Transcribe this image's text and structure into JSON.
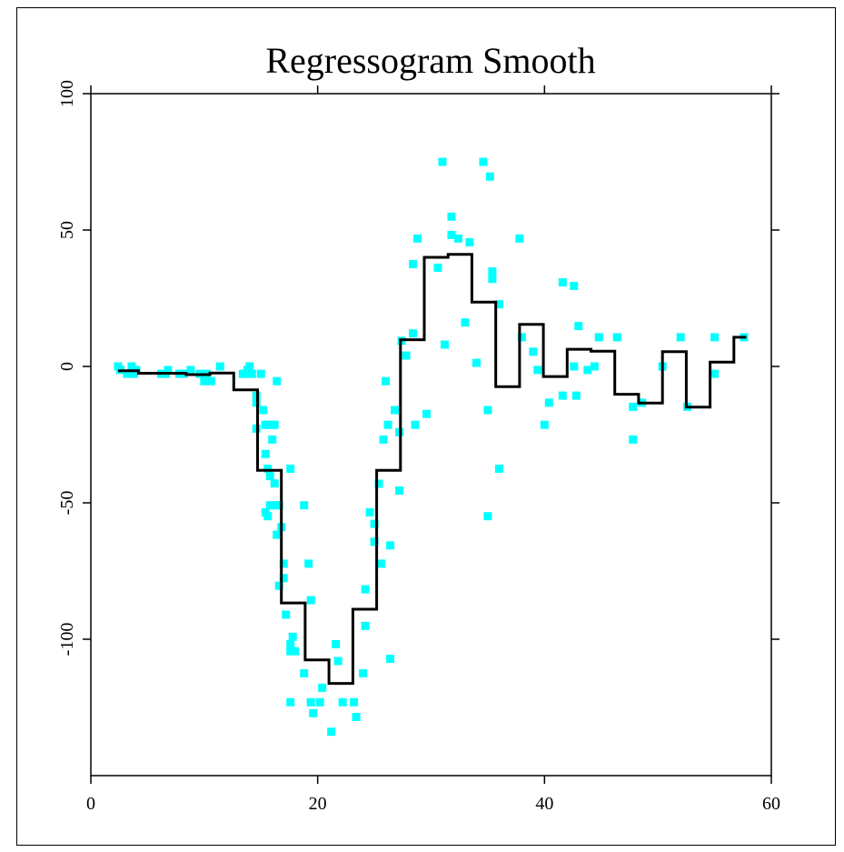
{
  "chart_data": {
    "type": "scatter",
    "title": "Regressogram Smooth",
    "xlabel": "",
    "ylabel": "",
    "xlim": [
      0,
      60
    ],
    "ylim": [
      -150,
      100
    ],
    "x_ticks": [
      0,
      20,
      40,
      60
    ],
    "y_ticks": [
      -100,
      -50,
      0,
      50,
      100
    ],
    "x_tick_labels": [
      "0",
      "20",
      "40",
      "60"
    ],
    "y_tick_labels": [
      "-100",
      "-50",
      "0",
      "50",
      "100"
    ],
    "grid": false,
    "legend": "none",
    "colors": {
      "points": "#00ffff",
      "step_line": "#000000"
    },
    "series": [
      {
        "kind": "points",
        "points": [
          [
            2.4,
            0
          ],
          [
            2.6,
            -1.3
          ],
          [
            3.2,
            -2.7
          ],
          [
            3.6,
            0
          ],
          [
            3.8,
            -2.7
          ],
          [
            4.0,
            -1.3
          ],
          [
            6.2,
            -2.7
          ],
          [
            6.6,
            -2.7
          ],
          [
            6.8,
            -1.3
          ],
          [
            7.8,
            -2.7
          ],
          [
            8.2,
            -2.7
          ],
          [
            8.8,
            -1.3
          ],
          [
            9.6,
            -2.7
          ],
          [
            10.0,
            -5.4
          ],
          [
            10.2,
            -2.7
          ],
          [
            10.6,
            -5.4
          ],
          [
            11.4,
            0
          ],
          [
            13.4,
            -2.7
          ],
          [
            13.6,
            -2.7
          ],
          [
            13.8,
            -1.3
          ],
          [
            14.0,
            0
          ],
          [
            14.2,
            -2.7
          ],
          [
            14.6,
            -10.7
          ],
          [
            14.6,
            -13.3
          ],
          [
            14.6,
            -22.8
          ],
          [
            15.0,
            -2.7
          ],
          [
            15.2,
            -16.0
          ],
          [
            15.4,
            -21.4
          ],
          [
            15.4,
            -32.1
          ],
          [
            15.4,
            -53.5
          ],
          [
            15.6,
            -37.5
          ],
          [
            15.6,
            -21.4
          ],
          [
            15.6,
            -54.9
          ],
          [
            15.8,
            -40.2
          ],
          [
            15.8,
            -50.9
          ],
          [
            16.0,
            -21.4
          ],
          [
            16.0,
            -26.8
          ],
          [
            16.2,
            -21.4
          ],
          [
            16.2,
            -42.9
          ],
          [
            16.2,
            -50.9
          ],
          [
            16.4,
            -61.7
          ],
          [
            16.4,
            -5.4
          ],
          [
            16.6,
            -50.9
          ],
          [
            16.6,
            -80.4
          ],
          [
            16.8,
            -58.9
          ],
          [
            17.0,
            -72.3
          ],
          [
            17.0,
            -77.6
          ],
          [
            17.2,
            -91.0
          ],
          [
            17.6,
            -37.5
          ],
          [
            17.6,
            -101.8
          ],
          [
            17.6,
            -104.4
          ],
          [
            17.6,
            -123.1
          ],
          [
            17.8,
            -99.1
          ],
          [
            18.0,
            -104.4
          ],
          [
            18.8,
            -50.9
          ],
          [
            18.8,
            -112.5
          ],
          [
            19.2,
            -72.3
          ],
          [
            19.4,
            -85.7
          ],
          [
            19.4,
            -123.1
          ],
          [
            19.6,
            -127.1
          ],
          [
            20.2,
            -123.1
          ],
          [
            20.4,
            -117.8
          ],
          [
            21.2,
            -133.9
          ],
          [
            21.6,
            -101.8
          ],
          [
            21.8,
            -108.0
          ],
          [
            22.2,
            -123.1
          ],
          [
            23.2,
            -123.1
          ],
          [
            23.4,
            -128.5
          ],
          [
            24.0,
            -112.5
          ],
          [
            24.2,
            -81.7
          ],
          [
            24.2,
            -95.1
          ],
          [
            24.6,
            -53.5
          ],
          [
            25.0,
            -57.7
          ],
          [
            25.0,
            -64.3
          ],
          [
            25.4,
            -43.0
          ],
          [
            25.6,
            -72.3
          ],
          [
            25.8,
            -26.8
          ],
          [
            26.0,
            -5.4
          ],
          [
            26.2,
            -21.4
          ],
          [
            26.4,
            -107.2
          ],
          [
            26.4,
            -65.6
          ],
          [
            26.8,
            -16.0
          ],
          [
            27.2,
            -24.1
          ],
          [
            27.2,
            -45.5
          ],
          [
            27.4,
            9.4
          ],
          [
            27.8,
            4.0
          ],
          [
            28.4,
            12.1
          ],
          [
            28.4,
            37.5
          ],
          [
            28.6,
            -21.4
          ],
          [
            28.8,
            46.9
          ],
          [
            29.6,
            -17.4
          ],
          [
            30.6,
            36.2
          ],
          [
            31.0,
            75.0
          ],
          [
            31.2,
            8.0
          ],
          [
            31.8,
            48.2
          ],
          [
            31.8,
            54.9
          ],
          [
            32.4,
            46.9
          ],
          [
            33.0,
            16.1
          ],
          [
            33.4,
            45.5
          ],
          [
            34.0,
            1.3
          ],
          [
            34.6,
            75.0
          ],
          [
            35.0,
            -16.0
          ],
          [
            35.0,
            -54.9
          ],
          [
            35.2,
            69.6
          ],
          [
            35.4,
            34.8
          ],
          [
            35.4,
            32.1
          ],
          [
            36.0,
            22.8
          ],
          [
            36.0,
            -37.5
          ],
          [
            37.8,
            46.9
          ],
          [
            38.0,
            10.7
          ],
          [
            39.0,
            5.4
          ],
          [
            39.4,
            -1.3
          ],
          [
            40.0,
            -21.4
          ],
          [
            40.4,
            -13.3
          ],
          [
            41.6,
            30.8
          ],
          [
            41.6,
            -10.7
          ],
          [
            42.6,
            29.5
          ],
          [
            42.6,
            0
          ],
          [
            42.8,
            -10.7
          ],
          [
            43.0,
            14.8
          ],
          [
            43.8,
            -1.3
          ],
          [
            44.4,
            0
          ],
          [
            44.8,
            10.7
          ],
          [
            46.4,
            10.7
          ],
          [
            47.8,
            -26.8
          ],
          [
            47.8,
            -14.8
          ],
          [
            48.6,
            -13.3
          ],
          [
            50.4,
            0
          ],
          [
            52.0,
            10.7
          ],
          [
            52.6,
            -14.8
          ],
          [
            55.0,
            10.7
          ],
          [
            55.0,
            -2.7
          ],
          [
            57.6,
            10.7
          ]
        ]
      },
      {
        "kind": "step",
        "steps": [
          [
            2.4,
            4.2,
            -1.6
          ],
          [
            4.2,
            8.4,
            -2.5
          ],
          [
            8.4,
            10.5,
            -3.0
          ],
          [
            10.5,
            12.6,
            -2.4
          ],
          [
            12.6,
            14.7,
            -8.6
          ],
          [
            14.7,
            16.8,
            -38.1
          ],
          [
            16.8,
            18.9,
            -86.7
          ],
          [
            18.9,
            21.0,
            -107.6
          ],
          [
            21.0,
            23.1,
            -116.2
          ],
          [
            23.1,
            25.2,
            -89.0
          ],
          [
            25.2,
            27.3,
            -38.1
          ],
          [
            27.3,
            29.4,
            9.8
          ],
          [
            29.4,
            31.5,
            40.0
          ],
          [
            31.5,
            33.6,
            41.1
          ],
          [
            33.6,
            35.7,
            23.6
          ],
          [
            35.7,
            37.8,
            -7.4
          ],
          [
            37.8,
            39.9,
            15.4
          ],
          [
            39.9,
            42.0,
            -3.7
          ],
          [
            42.0,
            44.1,
            6.3
          ],
          [
            44.1,
            46.2,
            5.6
          ],
          [
            46.2,
            48.3,
            -10.2
          ],
          [
            48.3,
            50.4,
            -13.4
          ],
          [
            50.4,
            52.5,
            5.4
          ],
          [
            52.5,
            54.6,
            -14.9
          ],
          [
            54.6,
            56.7,
            1.6
          ],
          [
            56.7,
            57.8,
            10.7
          ]
        ]
      }
    ]
  }
}
